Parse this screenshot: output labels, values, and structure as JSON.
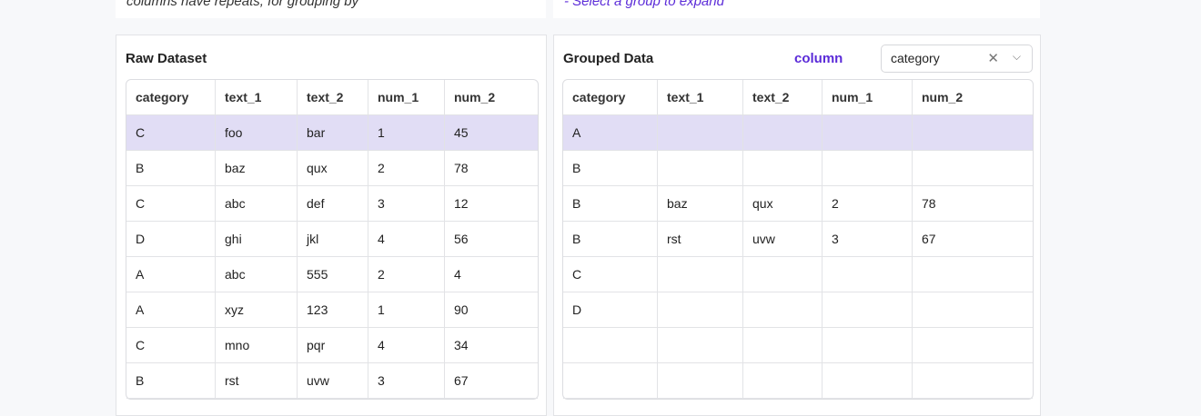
{
  "top": {
    "left_text": "columns have repeats, for grouping by",
    "right_text": "- Select a group to expand"
  },
  "raw": {
    "title": "Raw Dataset",
    "columns": [
      "category",
      "text_1",
      "text_2",
      "num_1",
      "num_2"
    ],
    "rows": [
      [
        "C",
        "foo",
        "bar",
        "1",
        "45"
      ],
      [
        "B",
        "baz",
        "qux",
        "2",
        "78"
      ],
      [
        "C",
        "abc",
        "def",
        "3",
        "12"
      ],
      [
        "D",
        "ghi",
        "jkl",
        "4",
        "56"
      ],
      [
        "A",
        "abc",
        "555",
        "2",
        "4"
      ],
      [
        "A",
        "xyz",
        "123",
        "1",
        "90"
      ],
      [
        "C",
        "mno",
        "pqr",
        "4",
        "34"
      ],
      [
        "B",
        "rst",
        "uvw",
        "3",
        "67"
      ]
    ]
  },
  "grouped": {
    "title": "Grouped Data",
    "column_label": "column",
    "select_value": "category",
    "columns": [
      "category",
      "text_1",
      "text_2",
      "num_1",
      "num_2"
    ],
    "rows": [
      [
        "A",
        "",
        "",
        "",
        ""
      ],
      [
        "B",
        "",
        "",
        "",
        ""
      ],
      [
        "B",
        "baz",
        "qux",
        "2",
        "78"
      ],
      [
        "B",
        "rst",
        "uvw",
        "3",
        "67"
      ],
      [
        "C",
        "",
        "",
        "",
        ""
      ],
      [
        "D",
        "",
        "",
        "",
        ""
      ],
      [
        "",
        "",
        "",
        "",
        ""
      ],
      [
        "",
        "",
        "",
        "",
        ""
      ]
    ]
  },
  "colors": {
    "accent": "#5b2bd8",
    "selected_row": "#e1ddf5"
  }
}
